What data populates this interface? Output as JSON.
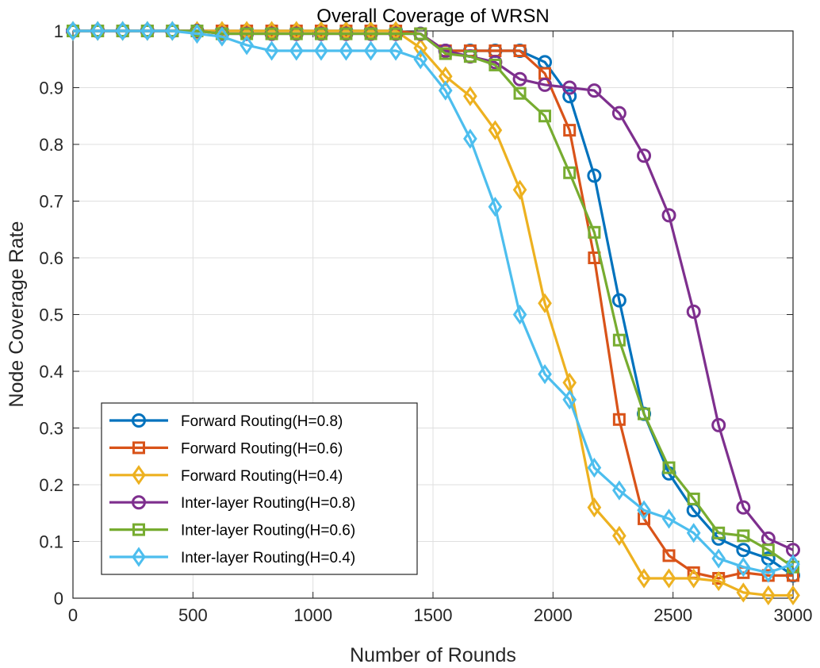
{
  "chart_data": {
    "type": "line",
    "title": "Overall Coverage of WRSN",
    "xlabel": "Number of Rounds",
    "ylabel": "Node Coverage Rate",
    "xlim": [
      0,
      3000
    ],
    "ylim": [
      0,
      1
    ],
    "xticks": [
      0,
      500,
      1000,
      1500,
      2000,
      2500,
      3000
    ],
    "xtick_labels": [
      "0",
      "500",
      "1000",
      "1500",
      "2000",
      "2500",
      "3000"
    ],
    "yticks": [
      0,
      0.1,
      0.2,
      0.3,
      0.4,
      0.5,
      0.6,
      0.7,
      0.8,
      0.9,
      1
    ],
    "ytick_labels": [
      "0",
      "0.1",
      "0.2",
      "0.3",
      "0.4",
      "0.5",
      "0.6",
      "0.7",
      "0.8",
      "0.9",
      "1"
    ],
    "grid": true,
    "legend_position": "bottom-left",
    "x": [
      0,
      103,
      207,
      310,
      414,
      517,
      621,
      724,
      828,
      931,
      1034,
      1138,
      1241,
      1345,
      1448,
      1552,
      1655,
      1759,
      1862,
      1966,
      2069,
      2172,
      2276,
      2379,
      2483,
      2586,
      2690,
      2793,
      2897,
      3000
    ],
    "series": [
      {
        "name": "Forward Routing(H=0.8)",
        "color": "#0072BD",
        "marker": "circle",
        "values": [
          1,
          1,
          1,
          1,
          1,
          1,
          1,
          1,
          1,
          1,
          1,
          1,
          1,
          1,
          0.995,
          0.965,
          0.965,
          0.965,
          0.965,
          0.945,
          0.885,
          0.745,
          0.525,
          0.325,
          0.22,
          0.155,
          0.105,
          0.085,
          0.07,
          0.04
        ]
      },
      {
        "name": "Forward Routing(H=0.6)",
        "color": "#D95319",
        "marker": "square",
        "values": [
          1,
          1,
          1,
          1,
          1,
          1,
          1,
          1,
          1,
          1,
          1,
          1,
          1,
          1,
          0.995,
          0.965,
          0.965,
          0.965,
          0.965,
          0.925,
          0.825,
          0.6,
          0.315,
          0.14,
          0.075,
          0.045,
          0.035,
          0.045,
          0.04,
          0.04
        ]
      },
      {
        "name": "Forward Routing(H=0.4)",
        "color": "#EDB120",
        "marker": "diamond",
        "values": [
          1,
          1,
          1,
          1,
          1,
          1,
          1,
          1,
          1,
          1,
          1,
          1,
          1,
          1,
          0.97,
          0.92,
          0.885,
          0.825,
          0.72,
          0.52,
          0.38,
          0.16,
          0.11,
          0.035,
          0.035,
          0.035,
          0.03,
          0.01,
          0.005,
          0.005
        ]
      },
      {
        "name": "Inter-layer Routing(H=0.8)",
        "color": "#7E2F8E",
        "marker": "circle",
        "values": [
          1,
          1,
          1,
          1,
          1,
          1,
          0.995,
          0.995,
          0.995,
          0.995,
          0.995,
          0.995,
          0.995,
          0.995,
          0.995,
          0.965,
          0.955,
          0.945,
          0.915,
          0.905,
          0.9,
          0.895,
          0.855,
          0.78,
          0.675,
          0.505,
          0.305,
          0.16,
          0.105,
          0.085
        ]
      },
      {
        "name": "Inter-layer Routing(H=0.6)",
        "color": "#77AC30",
        "marker": "square",
        "values": [
          1,
          1,
          1,
          1,
          1,
          1,
          0.995,
          0.995,
          0.995,
          0.995,
          0.995,
          0.995,
          0.995,
          0.995,
          0.995,
          0.96,
          0.955,
          0.94,
          0.89,
          0.85,
          0.75,
          0.645,
          0.455,
          0.325,
          0.23,
          0.175,
          0.115,
          0.11,
          0.085,
          0.055
        ]
      },
      {
        "name": "Inter-layer Routing(H=0.4)",
        "color": "#4DBEEE",
        "marker": "diamond",
        "values": [
          1,
          1,
          1,
          1,
          1,
          0.995,
          0.99,
          0.975,
          0.965,
          0.965,
          0.965,
          0.965,
          0.965,
          0.965,
          0.95,
          0.895,
          0.81,
          0.69,
          0.5,
          0.395,
          0.35,
          0.23,
          0.19,
          0.155,
          0.14,
          0.115,
          0.07,
          0.055,
          0.045,
          0.06
        ]
      }
    ]
  }
}
